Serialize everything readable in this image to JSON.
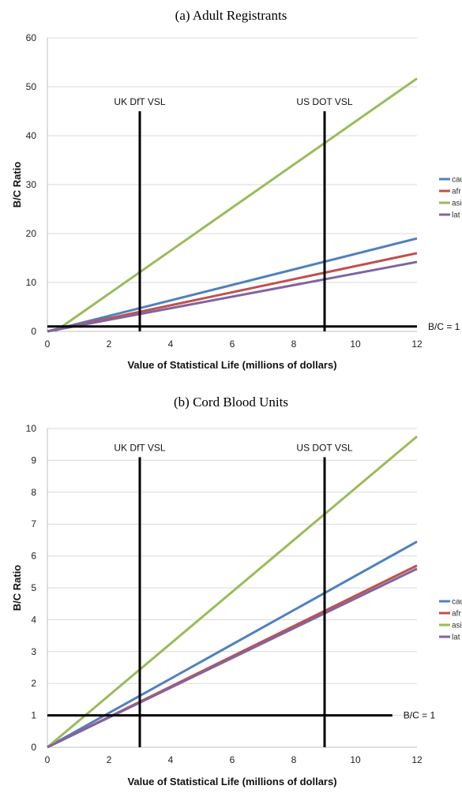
{
  "chart_data": [
    {
      "type": "line",
      "title": "(a) Adult Registrants",
      "xlabel": "Value of Statistical Life (millions of dollars)",
      "ylabel": "B/C Ratio",
      "xlim": [
        0,
        12
      ],
      "ylim": [
        0,
        60
      ],
      "xticks": [
        0,
        2,
        4,
        6,
        8,
        10,
        12
      ],
      "yticks": [
        0,
        10,
        20,
        30,
        40,
        50,
        60
      ],
      "grid": true,
      "legend_position": "right",
      "series": [
        {
          "name": "cau",
          "color": "#4F81BD",
          "x": [
            0,
            12
          ],
          "y": [
            0,
            19
          ]
        },
        {
          "name": "afr",
          "color": "#C0504D",
          "x": [
            0,
            12
          ],
          "y": [
            0,
            16
          ]
        },
        {
          "name": "asi",
          "color": "#9BBB59",
          "x": [
            0.25,
            12
          ],
          "y": [
            0,
            51.7
          ]
        },
        {
          "name": "lat",
          "color": "#8064A2",
          "x": [
            0,
            12
          ],
          "y": [
            0,
            14.2
          ]
        }
      ],
      "reference_lines": [
        {
          "label": "UK DfT VSL",
          "orientation": "vertical",
          "x": 3,
          "y_top": 45
        },
        {
          "label": "US DOT VSL",
          "orientation": "vertical",
          "x": 9,
          "y_top": 45
        },
        {
          "label": "B/C = 1",
          "orientation": "horizontal",
          "y": 1,
          "x_end": 12
        }
      ]
    },
    {
      "type": "line",
      "title": "(b) Cord Blood Units",
      "xlabel": "Value of Statistical Life (millions of dollars)",
      "ylabel": "B/C Ratio",
      "xlim": [
        0,
        12
      ],
      "ylim": [
        0,
        10
      ],
      "xticks": [
        0,
        2,
        4,
        6,
        8,
        10,
        12
      ],
      "yticks": [
        0,
        1,
        2,
        3,
        4,
        5,
        6,
        7,
        8,
        9,
        10
      ],
      "grid": true,
      "legend_position": "right",
      "series": [
        {
          "name": "cau",
          "color": "#4F81BD",
          "x": [
            0,
            12
          ],
          "y": [
            0,
            6.45
          ]
        },
        {
          "name": "afr",
          "color": "#C0504D",
          "x": [
            0,
            12
          ],
          "y": [
            0,
            5.7
          ]
        },
        {
          "name": "asi",
          "color": "#9BBB59",
          "x": [
            0,
            12
          ],
          "y": [
            0,
            9.75
          ]
        },
        {
          "name": "lat",
          "color": "#8064A2",
          "x": [
            0,
            12
          ],
          "y": [
            0,
            5.6
          ]
        }
      ],
      "reference_lines": [
        {
          "label": "UK DfT VSL",
          "orientation": "vertical",
          "x": 3,
          "y_top": 9.1
        },
        {
          "label": "US DOT VSL",
          "orientation": "vertical",
          "x": 9,
          "y_top": 9.1
        },
        {
          "label": "B/C = 1",
          "orientation": "horizontal",
          "y": 1,
          "x_end": 11.2
        }
      ]
    }
  ]
}
